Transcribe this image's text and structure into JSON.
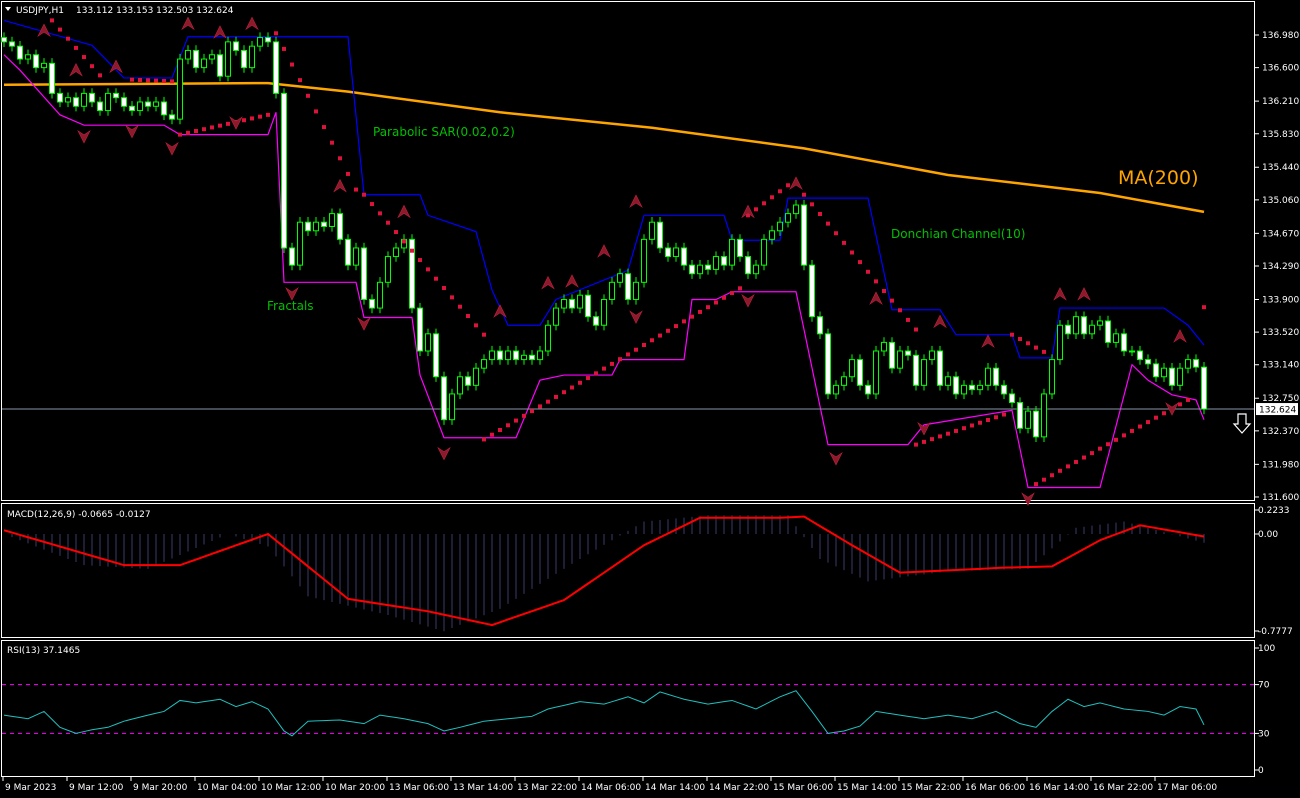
{
  "header": {
    "symbol": "USDJPY,H1",
    "ohlc": "133.112 133.153 132.503 132.624"
  },
  "annotations": {
    "sar": "Parabolic SAR(0.02,0.2)",
    "fractals": "Fractals",
    "donchian": "Donchian Channel(10)",
    "ma": "MA(200)"
  },
  "colors": {
    "background": "#000000",
    "candle_outline": "#00ff00",
    "bull_body": "#000000",
    "bear_body": "#ffffff",
    "ma": "#ffa500",
    "donchian_upper": "#0000ff",
    "donchian_lower": "#ff00ff",
    "sar": "#dc143c",
    "fractal": "#8b1a2a",
    "macd_signal": "#ff0000",
    "macd_hist": "#3a3a6a",
    "rsi": "#20c0c0",
    "rsi_levels": "#ff00ff",
    "annotation_text": "#00c000"
  },
  "chart_data": {
    "type": "candlestick",
    "title": "USDJPY,H1",
    "current_price": "132.624",
    "price_ticks": [
      "136.980",
      "136.600",
      "136.210",
      "135.830",
      "135.440",
      "135.060",
      "134.670",
      "134.290",
      "133.900",
      "133.520",
      "133.140",
      "132.750",
      "132.370",
      "131.980",
      "131.600"
    ],
    "ylim": [
      131.6,
      136.98
    ],
    "time_labels": [
      "9 Mar 2023",
      "9 Mar 12:00",
      "9 Mar 20:00",
      "10 Mar 04:00",
      "10 Mar 12:00",
      "10 Mar 20:00",
      "13 Mar 06:00",
      "13 Mar 14:00",
      "13 Mar 22:00",
      "14 Mar 06:00",
      "14 Mar 14:00",
      "14 Mar 22:00",
      "15 Mar 06:00",
      "15 Mar 14:00",
      "15 Mar 22:00",
      "16 Mar 06:00",
      "16 Mar 14:00",
      "16 Mar 22:00",
      "17 Mar 06:00"
    ],
    "first_open": 136.95,
    "close": [
      136.9,
      136.85,
      136.7,
      136.75,
      136.6,
      136.65,
      136.3,
      136.2,
      136.25,
      136.15,
      136.3,
      136.2,
      136.1,
      136.3,
      136.25,
      136.15,
      136.1,
      136.2,
      136.15,
      136.2,
      136.05,
      136.0,
      136.7,
      136.8,
      136.6,
      136.7,
      136.75,
      136.5,
      136.9,
      136.8,
      136.6,
      136.85,
      136.95,
      136.9,
      136.3,
      134.5,
      134.3,
      134.8,
      134.7,
      134.8,
      134.75,
      134.9,
      134.6,
      134.3,
      134.5,
      133.9,
      133.8,
      134.1,
      134.4,
      134.5,
      134.6,
      133.8,
      133.3,
      133.5,
      133.0,
      132.5,
      132.8,
      133.0,
      132.9,
      133.1,
      133.2,
      133.3,
      133.2,
      133.3,
      133.2,
      133.25,
      133.2,
      133.3,
      133.6,
      133.8,
      133.9,
      133.8,
      133.95,
      133.7,
      133.6,
      133.9,
      134.1,
      134.2,
      133.9,
      134.1,
      134.6,
      134.8,
      134.5,
      134.4,
      134.5,
      134.3,
      134.2,
      134.3,
      134.25,
      134.4,
      134.3,
      134.6,
      134.4,
      134.2,
      134.3,
      134.6,
      134.7,
      134.8,
      134.9,
      135.0,
      134.3,
      133.7,
      133.5,
      132.8,
      132.9,
      133.0,
      133.2,
      132.9,
      132.8,
      133.3,
      133.4,
      133.1,
      133.3,
      133.25,
      132.9,
      133.2,
      133.3,
      132.9,
      133.0,
      132.8,
      132.9,
      132.85,
      132.9,
      133.1,
      132.9,
      132.8,
      132.7,
      132.4,
      132.6,
      132.3,
      132.8,
      133.2,
      133.6,
      133.5,
      133.7,
      133.5,
      133.6,
      133.65,
      133.4,
      133.5,
      133.3,
      133.3,
      133.2,
      133.15,
      133.0,
      133.1,
      132.9,
      133.1,
      133.2,
      133.112,
      132.624
    ],
    "ma200": [
      [
        0,
        136.4
      ],
      [
        33,
        136.42
      ],
      [
        43,
        136.32
      ],
      [
        62,
        136.08
      ],
      [
        81,
        135.9
      ],
      [
        100,
        135.66
      ],
      [
        118,
        135.35
      ],
      [
        137,
        135.14
      ],
      [
        150,
        134.92
      ]
    ],
    "donchian_upper": [
      [
        0,
        137.15
      ],
      [
        11,
        136.86
      ],
      [
        15,
        136.48
      ],
      [
        21,
        136.48
      ],
      [
        23,
        136.96
      ],
      [
        43,
        136.96
      ],
      [
        45,
        135.12
      ],
      [
        52,
        135.12
      ],
      [
        53,
        134.88
      ],
      [
        59,
        134.69
      ],
      [
        61,
        134.01
      ],
      [
        63,
        133.6
      ],
      [
        67,
        133.6
      ],
      [
        69,
        133.9
      ],
      [
        78,
        134.24
      ],
      [
        80,
        134.88
      ],
      [
        90,
        134.88
      ],
      [
        91,
        134.59
      ],
      [
        97,
        134.59
      ],
      [
        98,
        135.08
      ],
      [
        108,
        135.08
      ],
      [
        111,
        133.78
      ],
      [
        117,
        133.78
      ],
      [
        119,
        133.49
      ],
      [
        126,
        133.49
      ],
      [
        127,
        133.22
      ],
      [
        131,
        133.22
      ],
      [
        132,
        133.8
      ],
      [
        145,
        133.8
      ],
      [
        148,
        133.6
      ],
      [
        150,
        133.37
      ]
    ],
    "donchian_lower": [
      [
        0,
        136.75
      ],
      [
        2,
        136.57
      ],
      [
        7,
        136.05
      ],
      [
        10,
        135.93
      ],
      [
        20,
        135.93
      ],
      [
        22,
        135.82
      ],
      [
        33,
        135.82
      ],
      [
        34,
        136.08
      ],
      [
        35,
        134.1
      ],
      [
        44,
        134.1
      ],
      [
        45,
        133.69
      ],
      [
        51,
        133.69
      ],
      [
        52,
        133.02
      ],
      [
        55,
        132.29
      ],
      [
        64,
        132.29
      ],
      [
        67,
        132.96
      ],
      [
        70,
        133.02
      ],
      [
        76,
        133.02
      ],
      [
        77,
        133.2
      ],
      [
        85,
        133.2
      ],
      [
        86,
        133.9
      ],
      [
        89,
        133.9
      ],
      [
        91,
        133.99
      ],
      [
        99,
        133.99
      ],
      [
        100,
        133.55
      ],
      [
        103,
        132.21
      ],
      [
        113,
        132.21
      ],
      [
        115,
        132.44
      ],
      [
        126,
        132.61
      ],
      [
        128,
        131.71
      ],
      [
        137,
        131.71
      ],
      [
        141,
        133.14
      ],
      [
        143,
        132.96
      ],
      [
        146,
        132.79
      ],
      [
        149,
        132.73
      ],
      [
        150,
        132.5
      ]
    ],
    "sar_segments": [
      {
        "from": [
          6,
          137.15
        ],
        "to": [
          12,
          136.51
        ]
      },
      {
        "from": [
          16,
          136.46
        ],
        "to": [
          21,
          136.44
        ]
      },
      {
        "from": [
          22,
          135.82
        ],
        "to": [
          33,
          136.05
        ]
      },
      {
        "from": [
          34,
          137.0
        ],
        "to": [
          44,
          135.18
        ]
      },
      {
        "from": [
          45,
          135.12
        ],
        "to": [
          60,
          133.49
        ]
      },
      {
        "from": [
          60,
          132.27
        ],
        "to": [
          92,
          134.03
        ]
      },
      {
        "from": [
          93,
          134.88
        ],
        "to": [
          98,
          135.23
        ]
      },
      {
        "from": [
          100,
          135.12
        ],
        "to": [
          114,
          133.55
        ]
      },
      {
        "from": [
          114,
          132.21
        ],
        "to": [
          125,
          132.56
        ]
      },
      {
        "from": [
          126,
          133.49
        ],
        "to": [
          130,
          133.29
        ]
      },
      {
        "from": [
          129,
          131.75
        ],
        "to": [
          148,
          132.73
        ]
      },
      {
        "from": [
          150,
          133.81
        ],
        "to": [
          150,
          133.81
        ]
      }
    ],
    "fractals_up": [
      [
        5,
        136.99
      ],
      [
        9,
        136.53
      ],
      [
        14,
        136.57
      ],
      [
        23,
        137.07
      ],
      [
        27,
        136.97
      ],
      [
        31,
        137.07
      ],
      [
        42,
        135.18
      ],
      [
        50,
        134.88
      ],
      [
        62,
        133.72
      ],
      [
        68,
        134.05
      ],
      [
        71,
        134.07
      ],
      [
        75,
        134.42
      ],
      [
        79,
        135.0
      ],
      [
        93,
        134.88
      ],
      [
        99,
        135.21
      ],
      [
        109,
        133.87
      ],
      [
        117,
        133.6
      ],
      [
        123,
        133.37
      ],
      [
        132,
        133.92
      ],
      [
        135,
        133.92
      ],
      [
        147,
        133.43
      ]
    ],
    "fractals_down": [
      [
        10,
        135.84
      ],
      [
        16,
        135.9
      ],
      [
        21,
        135.7
      ],
      [
        29,
        136.0
      ],
      [
        36,
        134.01
      ],
      [
        45,
        133.66
      ],
      [
        55,
        132.15
      ],
      [
        79,
        133.74
      ],
      [
        93,
        133.93
      ],
      [
        104,
        132.09
      ],
      [
        115,
        132.44
      ],
      [
        128,
        131.62
      ],
      [
        146,
        132.67
      ]
    ],
    "macd": {
      "label": "MACD(12,26,9) -0.0665 -0.0127",
      "ticks": [
        "0.2233",
        "0.00",
        "-0.7777"
      ],
      "ylim": [
        -0.7777,
        0.2233
      ],
      "signal": [
        [
          0,
          0.03
        ],
        [
          15,
          -0.25
        ],
        [
          22,
          -0.25
        ],
        [
          33,
          0.0
        ],
        [
          43,
          -0.52
        ],
        [
          53,
          -0.62
        ],
        [
          61,
          -0.73
        ],
        [
          70,
          -0.53
        ],
        [
          80,
          -0.09
        ],
        [
          87,
          0.13
        ],
        [
          97,
          0.13
        ],
        [
          100,
          0.14
        ],
        [
          106,
          -0.09
        ],
        [
          112,
          -0.31
        ],
        [
          125,
          -0.27
        ],
        [
          131,
          -0.26
        ],
        [
          137,
          -0.05
        ],
        [
          142,
          0.07
        ],
        [
          150,
          -0.02
        ]
      ],
      "histogram": [
        [
          0,
          0.0
        ],
        [
          10,
          -0.25
        ],
        [
          18,
          -0.28
        ],
        [
          28,
          0.0
        ],
        [
          33,
          -0.1
        ],
        [
          38,
          -0.5
        ],
        [
          48,
          -0.65
        ],
        [
          55,
          -0.78
        ],
        [
          62,
          -0.6
        ],
        [
          72,
          -0.2
        ],
        [
          80,
          0.1
        ],
        [
          88,
          0.15
        ],
        [
          98,
          0.15
        ],
        [
          102,
          -0.2
        ],
        [
          108,
          -0.38
        ],
        [
          118,
          -0.3
        ],
        [
          128,
          -0.28
        ],
        [
          134,
          0.05
        ],
        [
          140,
          0.1
        ],
        [
          150,
          -0.07
        ]
      ]
    },
    "rsi": {
      "label": "RSI(13) 37.1465",
      "ticks": [
        "100",
        "70",
        "30",
        "0"
      ],
      "levels": [
        70,
        30
      ],
      "ylim": [
        0,
        100
      ],
      "values": [
        [
          0,
          45
        ],
        [
          3,
          42
        ],
        [
          5,
          48
        ],
        [
          7,
          35
        ],
        [
          9,
          30
        ],
        [
          11,
          33
        ],
        [
          13,
          35
        ],
        [
          15,
          40
        ],
        [
          18,
          45
        ],
        [
          20,
          48
        ],
        [
          22,
          57
        ],
        [
          24,
          55
        ],
        [
          27,
          58
        ],
        [
          29,
          52
        ],
        [
          31,
          56
        ],
        [
          33,
          50
        ],
        [
          35,
          32
        ],
        [
          36,
          28
        ],
        [
          38,
          40
        ],
        [
          42,
          41
        ],
        [
          45,
          38
        ],
        [
          47,
          45
        ],
        [
          50,
          42
        ],
        [
          53,
          38
        ],
        [
          55,
          32
        ],
        [
          57,
          35
        ],
        [
          60,
          40
        ],
        [
          63,
          42
        ],
        [
          66,
          44
        ],
        [
          68,
          50
        ],
        [
          72,
          56
        ],
        [
          75,
          54
        ],
        [
          78,
          60
        ],
        [
          80,
          55
        ],
        [
          82,
          64
        ],
        [
          85,
          58
        ],
        [
          88,
          54
        ],
        [
          91,
          57
        ],
        [
          94,
          50
        ],
        [
          97,
          60
        ],
        [
          99,
          65
        ],
        [
          101,
          48
        ],
        [
          103,
          30
        ],
        [
          105,
          32
        ],
        [
          107,
          36
        ],
        [
          109,
          48
        ],
        [
          112,
          45
        ],
        [
          115,
          42
        ],
        [
          118,
          45
        ],
        [
          121,
          42
        ],
        [
          124,
          48
        ],
        [
          127,
          38
        ],
        [
          129,
          35
        ],
        [
          131,
          48
        ],
        [
          133,
          58
        ],
        [
          135,
          52
        ],
        [
          137,
          55
        ],
        [
          140,
          50
        ],
        [
          143,
          48
        ],
        [
          145,
          45
        ],
        [
          147,
          52
        ],
        [
          149,
          50
        ],
        [
          150,
          37
        ]
      ]
    }
  }
}
